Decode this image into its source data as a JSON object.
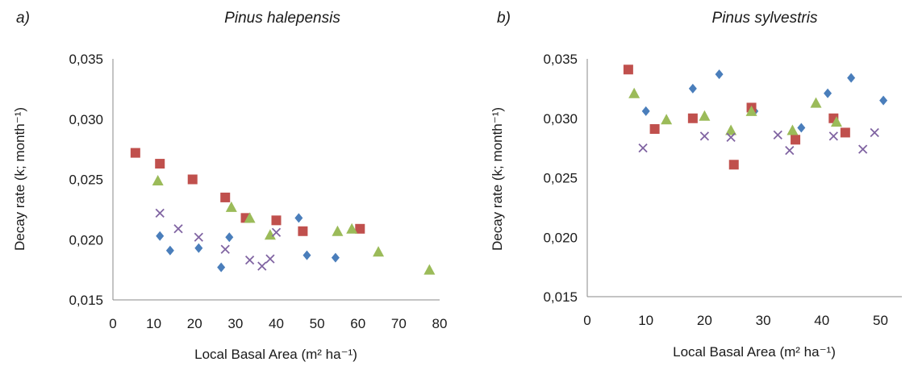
{
  "chart_data": [
    {
      "type": "scatter",
      "panel_label": "a)",
      "title": "Pinus halepensis",
      "xlabel": "Local Basal Area (m² ha⁻¹)",
      "ylabel": "Decay rate (k; month⁻¹)",
      "xlim": [
        0,
        80
      ],
      "ylim": [
        0.015,
        0.035
      ],
      "x_ticks": [
        "0",
        "10",
        "20",
        "30",
        "40",
        "50",
        "60",
        "70",
        "80"
      ],
      "y_ticks": [
        "0,015",
        "0,020",
        "0,025",
        "0,030",
        "0,035"
      ],
      "grid": false,
      "series": [
        {
          "marker": "diamond",
          "color": "#4a7ebb",
          "points": [
            [
              11.5,
              0.0203
            ],
            [
              14,
              0.0191
            ],
            [
              21,
              0.0193
            ],
            [
              26.5,
              0.0177
            ],
            [
              28.5,
              0.0202
            ],
            [
              45.5,
              0.0218
            ],
            [
              47.5,
              0.0187
            ],
            [
              54.5,
              0.0185
            ]
          ]
        },
        {
          "marker": "square",
          "color": "#c0504d",
          "points": [
            [
              5.5,
              0.0272
            ],
            [
              11.5,
              0.0263
            ],
            [
              19.5,
              0.025
            ],
            [
              27.5,
              0.0235
            ],
            [
              32.5,
              0.0218
            ],
            [
              40,
              0.0216
            ],
            [
              46.5,
              0.0207
            ],
            [
              60.5,
              0.0209
            ]
          ]
        },
        {
          "marker": "triangle",
          "color": "#9bbb59",
          "points": [
            [
              11,
              0.0249
            ],
            [
              29,
              0.0227
            ],
            [
              33.5,
              0.0218
            ],
            [
              38.5,
              0.0204
            ],
            [
              55,
              0.0207
            ],
            [
              58.5,
              0.0209
            ],
            [
              65,
              0.019
            ],
            [
              77.5,
              0.0175
            ]
          ]
        },
        {
          "marker": "x",
          "color": "#8064a2",
          "points": [
            [
              11.5,
              0.0222
            ],
            [
              16,
              0.0209
            ],
            [
              21,
              0.0202
            ],
            [
              27.5,
              0.0192
            ],
            [
              33.5,
              0.0183
            ],
            [
              36.5,
              0.0178
            ],
            [
              38.5,
              0.0184
            ],
            [
              40,
              0.0206
            ]
          ]
        }
      ]
    },
    {
      "type": "scatter",
      "panel_label": "b)",
      "title": "Pinus sylvestris",
      "xlabel": "Local Basal Area (m² ha⁻¹)",
      "ylabel": "Decay rate (k; month⁻¹)",
      "xlim": [
        0,
        52
      ],
      "ylim": [
        0.015,
        0.035
      ],
      "x_ticks": [
        "0",
        "10",
        "20",
        "30",
        "40",
        "50"
      ],
      "y_ticks": [
        "0,015",
        "0,020",
        "0,025",
        "0,030",
        "0,035"
      ],
      "grid": false,
      "series": [
        {
          "marker": "diamond",
          "color": "#4a7ebb",
          "points": [
            [
              10,
              0.0306
            ],
            [
              18,
              0.0325
            ],
            [
              22.5,
              0.0337
            ],
            [
              28.5,
              0.0306
            ],
            [
              36.5,
              0.0292
            ],
            [
              41,
              0.0321
            ],
            [
              45,
              0.0334
            ],
            [
              50.5,
              0.0315
            ]
          ]
        },
        {
          "marker": "square",
          "color": "#c0504d",
          "points": [
            [
              7,
              0.0341
            ],
            [
              11.5,
              0.0291
            ],
            [
              18,
              0.03
            ],
            [
              25,
              0.0261
            ],
            [
              28,
              0.0309
            ],
            [
              35.5,
              0.0282
            ],
            [
              42,
              0.03
            ],
            [
              44,
              0.0288
            ]
          ]
        },
        {
          "marker": "triangle",
          "color": "#9bbb59",
          "points": [
            [
              8,
              0.0321
            ],
            [
              13.5,
              0.0299
            ],
            [
              20,
              0.0302
            ],
            [
              24.5,
              0.029
            ],
            [
              28,
              0.0306
            ],
            [
              35,
              0.029
            ],
            [
              39,
              0.0313
            ],
            [
              42.5,
              0.0297
            ]
          ]
        },
        {
          "marker": "x",
          "color": "#8064a2",
          "points": [
            [
              9.5,
              0.0275
            ],
            [
              20,
              0.0285
            ],
            [
              24.5,
              0.0284
            ],
            [
              32.5,
              0.0286
            ],
            [
              34.5,
              0.0273
            ],
            [
              42,
              0.0285
            ],
            [
              47,
              0.0274
            ],
            [
              49,
              0.0288
            ]
          ]
        }
      ]
    }
  ]
}
